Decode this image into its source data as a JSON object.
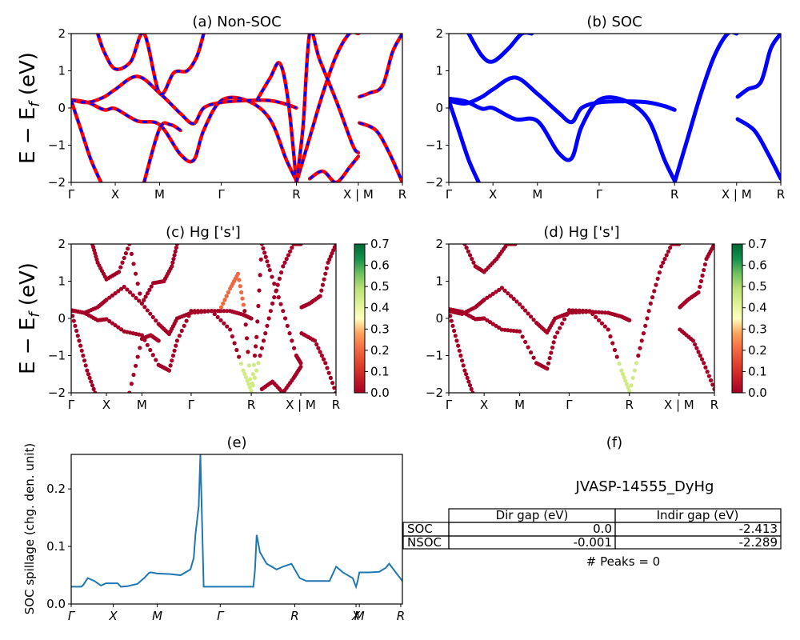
{
  "colors": {
    "nsoc_line": "#ff0000",
    "nsoc_dash": "#0000ff",
    "soc_line": "#0000ff",
    "spillage_line": "#1f77b4",
    "frame": "#000000"
  },
  "panel_a": {
    "title": "(a) Non-SOC"
  },
  "panel_b": {
    "title": "(b) SOC"
  },
  "panel_c": {
    "title": "(c)  Hg ['s']"
  },
  "panel_d": {
    "title": "(d) Hg ['s']"
  },
  "panel_e": {
    "title": "(e)",
    "ylabel": "SOC spillage (chg. den. unit)"
  },
  "panel_f": {
    "title": "(f)",
    "material": "JVASP-14555_DyHg",
    "table": {
      "headers": [
        "",
        "Dir gap (eV)",
        "Indir gap (eV)"
      ],
      "rows": [
        [
          "SOC",
          "0.0",
          "-2.413"
        ],
        [
          "NSOC",
          "-0.001",
          "-2.289"
        ]
      ]
    },
    "peaks": "# Peaks = 0"
  },
  "band_ylabel": "E − E_f (eV)",
  "chart_data": [
    {
      "panel": "a",
      "type": "line",
      "title": "(a) Non-SOC",
      "ylabel": "E − E_f (eV)",
      "xticks": [
        "Γ",
        "X",
        "M",
        "Γ",
        "R",
        "X | M",
        "R"
      ],
      "xtick_pos": [
        0,
        0.133,
        0.267,
        0.453,
        0.68,
        0.867,
        1.0
      ],
      "ylim": [
        -2,
        2
      ],
      "yticks": [
        -2,
        -1,
        0,
        1,
        2
      ],
      "series": [
        {
          "x": [
            0,
            0.05,
            0.1,
            0.133,
            0.2,
            0.267,
            0.33,
            0.37,
            0.4,
            0.453,
            0.53,
            0.6,
            0.65,
            0.68
          ],
          "y": [
            0.22,
            0.15,
            -0.05,
            -0.02,
            -0.35,
            -0.45,
            -1.25,
            -1.4,
            -0.6,
            0.2,
            0.2,
            -0.3,
            -1.4,
            -1.95
          ]
        },
        {
          "x": [
            0,
            0.05,
            0.1,
            0.133,
            0.2,
            0.267,
            0.33,
            0.37,
            0.4,
            0.453,
            0.53,
            0.6,
            0.65,
            0.68
          ],
          "y": [
            0.22,
            0.15,
            0.3,
            0.5,
            0.85,
            0.4,
            -0.15,
            -0.42,
            0.0,
            0.15,
            0.2,
            0.2,
            0.1,
            0.0
          ]
        },
        {
          "x": [
            0.08,
            0.1,
            0.133,
            0.18,
            0.22,
            0.267,
            0.31,
            0.35,
            0.38,
            0.4
          ],
          "y": [
            2.0,
            1.5,
            1.05,
            1.25,
            2.0,
            0.4,
            0.95,
            1.0,
            1.4,
            2.0
          ]
        },
        {
          "x": [
            0.0,
            0.03,
            0.06,
            0.09
          ],
          "y": [
            0.2,
            -0.6,
            -1.4,
            -2.0
          ]
        },
        {
          "x": [
            0.22,
            0.267,
            0.3,
            0.33
          ],
          "y": [
            -2.0,
            -0.55,
            -0.45,
            -0.6
          ]
        },
        {
          "x": [
            0.56,
            0.6,
            0.63,
            0.655,
            0.68
          ],
          "y": [
            0.2,
            0.8,
            1.2,
            0.2,
            -2.0
          ]
        },
        {
          "x": [
            0.68,
            0.72,
            0.76,
            0.8,
            0.84,
            0.867
          ],
          "y": [
            -2.0,
            -0.8,
            0.4,
            1.4,
            2.0,
            2.0
          ]
        },
        {
          "x": [
            0.68,
            0.7,
            0.72,
            0.75,
            0.8,
            0.85,
            0.867
          ],
          "y": [
            -2.0,
            -0.5,
            2.0,
            1.3,
            0.2,
            -1.0,
            -1.2
          ]
        },
        {
          "x": [
            0.72,
            0.76,
            0.8,
            0.84,
            0.867
          ],
          "y": [
            -1.9,
            -1.7,
            -2.0,
            -1.6,
            -1.3
          ]
        },
        {
          "x": [
            0.87,
            0.9,
            0.94,
            0.97,
            1.0
          ],
          "y": [
            0.3,
            0.4,
            0.6,
            1.5,
            2.0
          ]
        },
        {
          "x": [
            0.87,
            0.92,
            0.96,
            1.0
          ],
          "y": [
            -0.4,
            -0.6,
            -1.2,
            -2.0
          ]
        }
      ]
    },
    {
      "panel": "b",
      "type": "line",
      "title": "(b) SOC",
      "xticks": [
        "Γ",
        "X",
        "M",
        "Γ",
        "R",
        "X | M",
        "R"
      ],
      "xtick_pos": [
        0,
        0.133,
        0.267,
        0.453,
        0.68,
        0.867,
        1.0
      ],
      "ylim": [
        -2,
        2
      ],
      "yticks": [
        -2,
        -1,
        0,
        1,
        2
      ],
      "series": [
        {
          "x": [
            0,
            0.05,
            0.1,
            0.133,
            0.2,
            0.267,
            0.33,
            0.37,
            0.4,
            0.453,
            0.53,
            0.6,
            0.65,
            0.68
          ],
          "y": [
            0.25,
            0.18,
            -0.02,
            0.0,
            -0.3,
            -0.35,
            -1.2,
            -1.35,
            -0.5,
            0.22,
            0.2,
            -0.3,
            -1.4,
            -1.95
          ]
        },
        {
          "x": [
            0,
            0.05,
            0.1,
            0.133,
            0.2,
            0.267,
            0.33,
            0.37,
            0.4,
            0.453,
            0.53,
            0.6,
            0.65,
            0.68
          ],
          "y": [
            0.2,
            0.12,
            0.3,
            0.5,
            0.82,
            0.38,
            -0.12,
            -0.38,
            0.0,
            0.15,
            0.18,
            0.15,
            0.05,
            -0.05
          ]
        },
        {
          "x": [
            0.06,
            0.1,
            0.133,
            0.18,
            0.22,
            0.25
          ],
          "y": [
            2.0,
            1.4,
            1.25,
            1.6,
            2.0,
            2.0
          ]
        },
        {
          "x": [
            0.0,
            0.03,
            0.06,
            0.09
          ],
          "y": [
            0.2,
            -0.6,
            -1.4,
            -2.0
          ]
        },
        {
          "x": [
            0.68,
            0.72,
            0.76,
            0.8,
            0.84,
            0.867
          ],
          "y": [
            -2.0,
            -0.8,
            0.4,
            1.4,
            2.0,
            2.0
          ]
        },
        {
          "x": [
            0.87,
            0.92,
            0.96,
            1.0
          ],
          "y": [
            -0.3,
            -0.6,
            -1.2,
            -1.9
          ]
        },
        {
          "x": [
            0.87,
            0.9,
            0.94,
            0.97,
            1.0
          ],
          "y": [
            0.3,
            0.5,
            0.7,
            1.6,
            2.0
          ]
        }
      ]
    },
    {
      "panel": "c",
      "type": "scatter",
      "title": "(c)  Hg ['s']",
      "xticks": [
        "Γ",
        "X",
        "M",
        "Γ",
        "R",
        "X | M",
        "R"
      ],
      "xtick_pos": [
        0,
        0.133,
        0.267,
        0.453,
        0.68,
        0.867,
        1.0
      ],
      "ylim": [
        -2,
        2
      ],
      "yticks": [
        -2,
        -1,
        0,
        1,
        2
      ],
      "colorbar": {
        "min": 0.0,
        "max": 0.7,
        "ticks": [
          0.0,
          0.1,
          0.2,
          0.3,
          0.4,
          0.5,
          0.6,
          0.7
        ],
        "colormap": "RdYlGn"
      }
    },
    {
      "panel": "d",
      "type": "scatter",
      "title": "(d) Hg ['s']",
      "xticks": [
        "Γ",
        "X",
        "M",
        "Γ",
        "R",
        "X | M",
        "R"
      ],
      "xtick_pos": [
        0,
        0.133,
        0.267,
        0.453,
        0.68,
        0.867,
        1.0
      ],
      "ylim": [
        -2,
        2
      ],
      "yticks": [
        -2,
        -1,
        0,
        1,
        2
      ],
      "colorbar": {
        "min": 0.0,
        "max": 0.7,
        "ticks": [
          0.0,
          0.1,
          0.2,
          0.3,
          0.4,
          0.5,
          0.6,
          0.7
        ],
        "colormap": "RdYlGn"
      }
    },
    {
      "panel": "e",
      "type": "line",
      "title": "(e)",
      "ylabel": "SOC spillage (chg. den. unit)",
      "xticks": [
        "Γ",
        "X",
        "M",
        "Γ",
        "R",
        "X",
        "M",
        "R"
      ],
      "xtick_pos": [
        0,
        0.127,
        0.26,
        0.45,
        0.675,
        0.86,
        0.87,
        0.995
      ],
      "ylim": [
        0,
        0.26
      ],
      "yticks": [
        0.0,
        0.1,
        0.2
      ],
      "series": [
        {
          "name": "",
          "x": [
            0,
            0.03,
            0.035,
            0.05,
            0.07,
            0.09,
            0.105,
            0.11,
            0.14,
            0.15,
            0.17,
            0.2,
            0.22,
            0.235,
            0.24,
            0.26,
            0.3,
            0.33,
            0.36,
            0.37,
            0.375,
            0.385,
            0.39,
            0.4,
            0.45,
            0.55,
            0.555,
            0.56,
            0.57,
            0.59,
            0.62,
            0.64,
            0.665,
            0.69,
            0.71,
            0.72,
            0.73,
            0.78,
            0.8,
            0.82,
            0.85,
            0.86,
            0.865,
            0.87,
            0.9,
            0.93,
            0.95,
            0.96,
            1.0
          ],
          "y": [
            0.03,
            0.03,
            0.032,
            0.045,
            0.04,
            0.032,
            0.036,
            0.036,
            0.036,
            0.03,
            0.031,
            0.035,
            0.045,
            0.054,
            0.055,
            0.053,
            0.052,
            0.05,
            0.06,
            0.08,
            0.12,
            0.17,
            0.26,
            0.03,
            0.03,
            0.03,
            0.06,
            0.12,
            0.09,
            0.07,
            0.06,
            0.065,
            0.07,
            0.045,
            0.04,
            0.04,
            0.04,
            0.04,
            0.065,
            0.055,
            0.045,
            0.03,
            0.04,
            0.055,
            0.055,
            0.056,
            0.063,
            0.07,
            0.04
          ]
        }
      ]
    }
  ]
}
